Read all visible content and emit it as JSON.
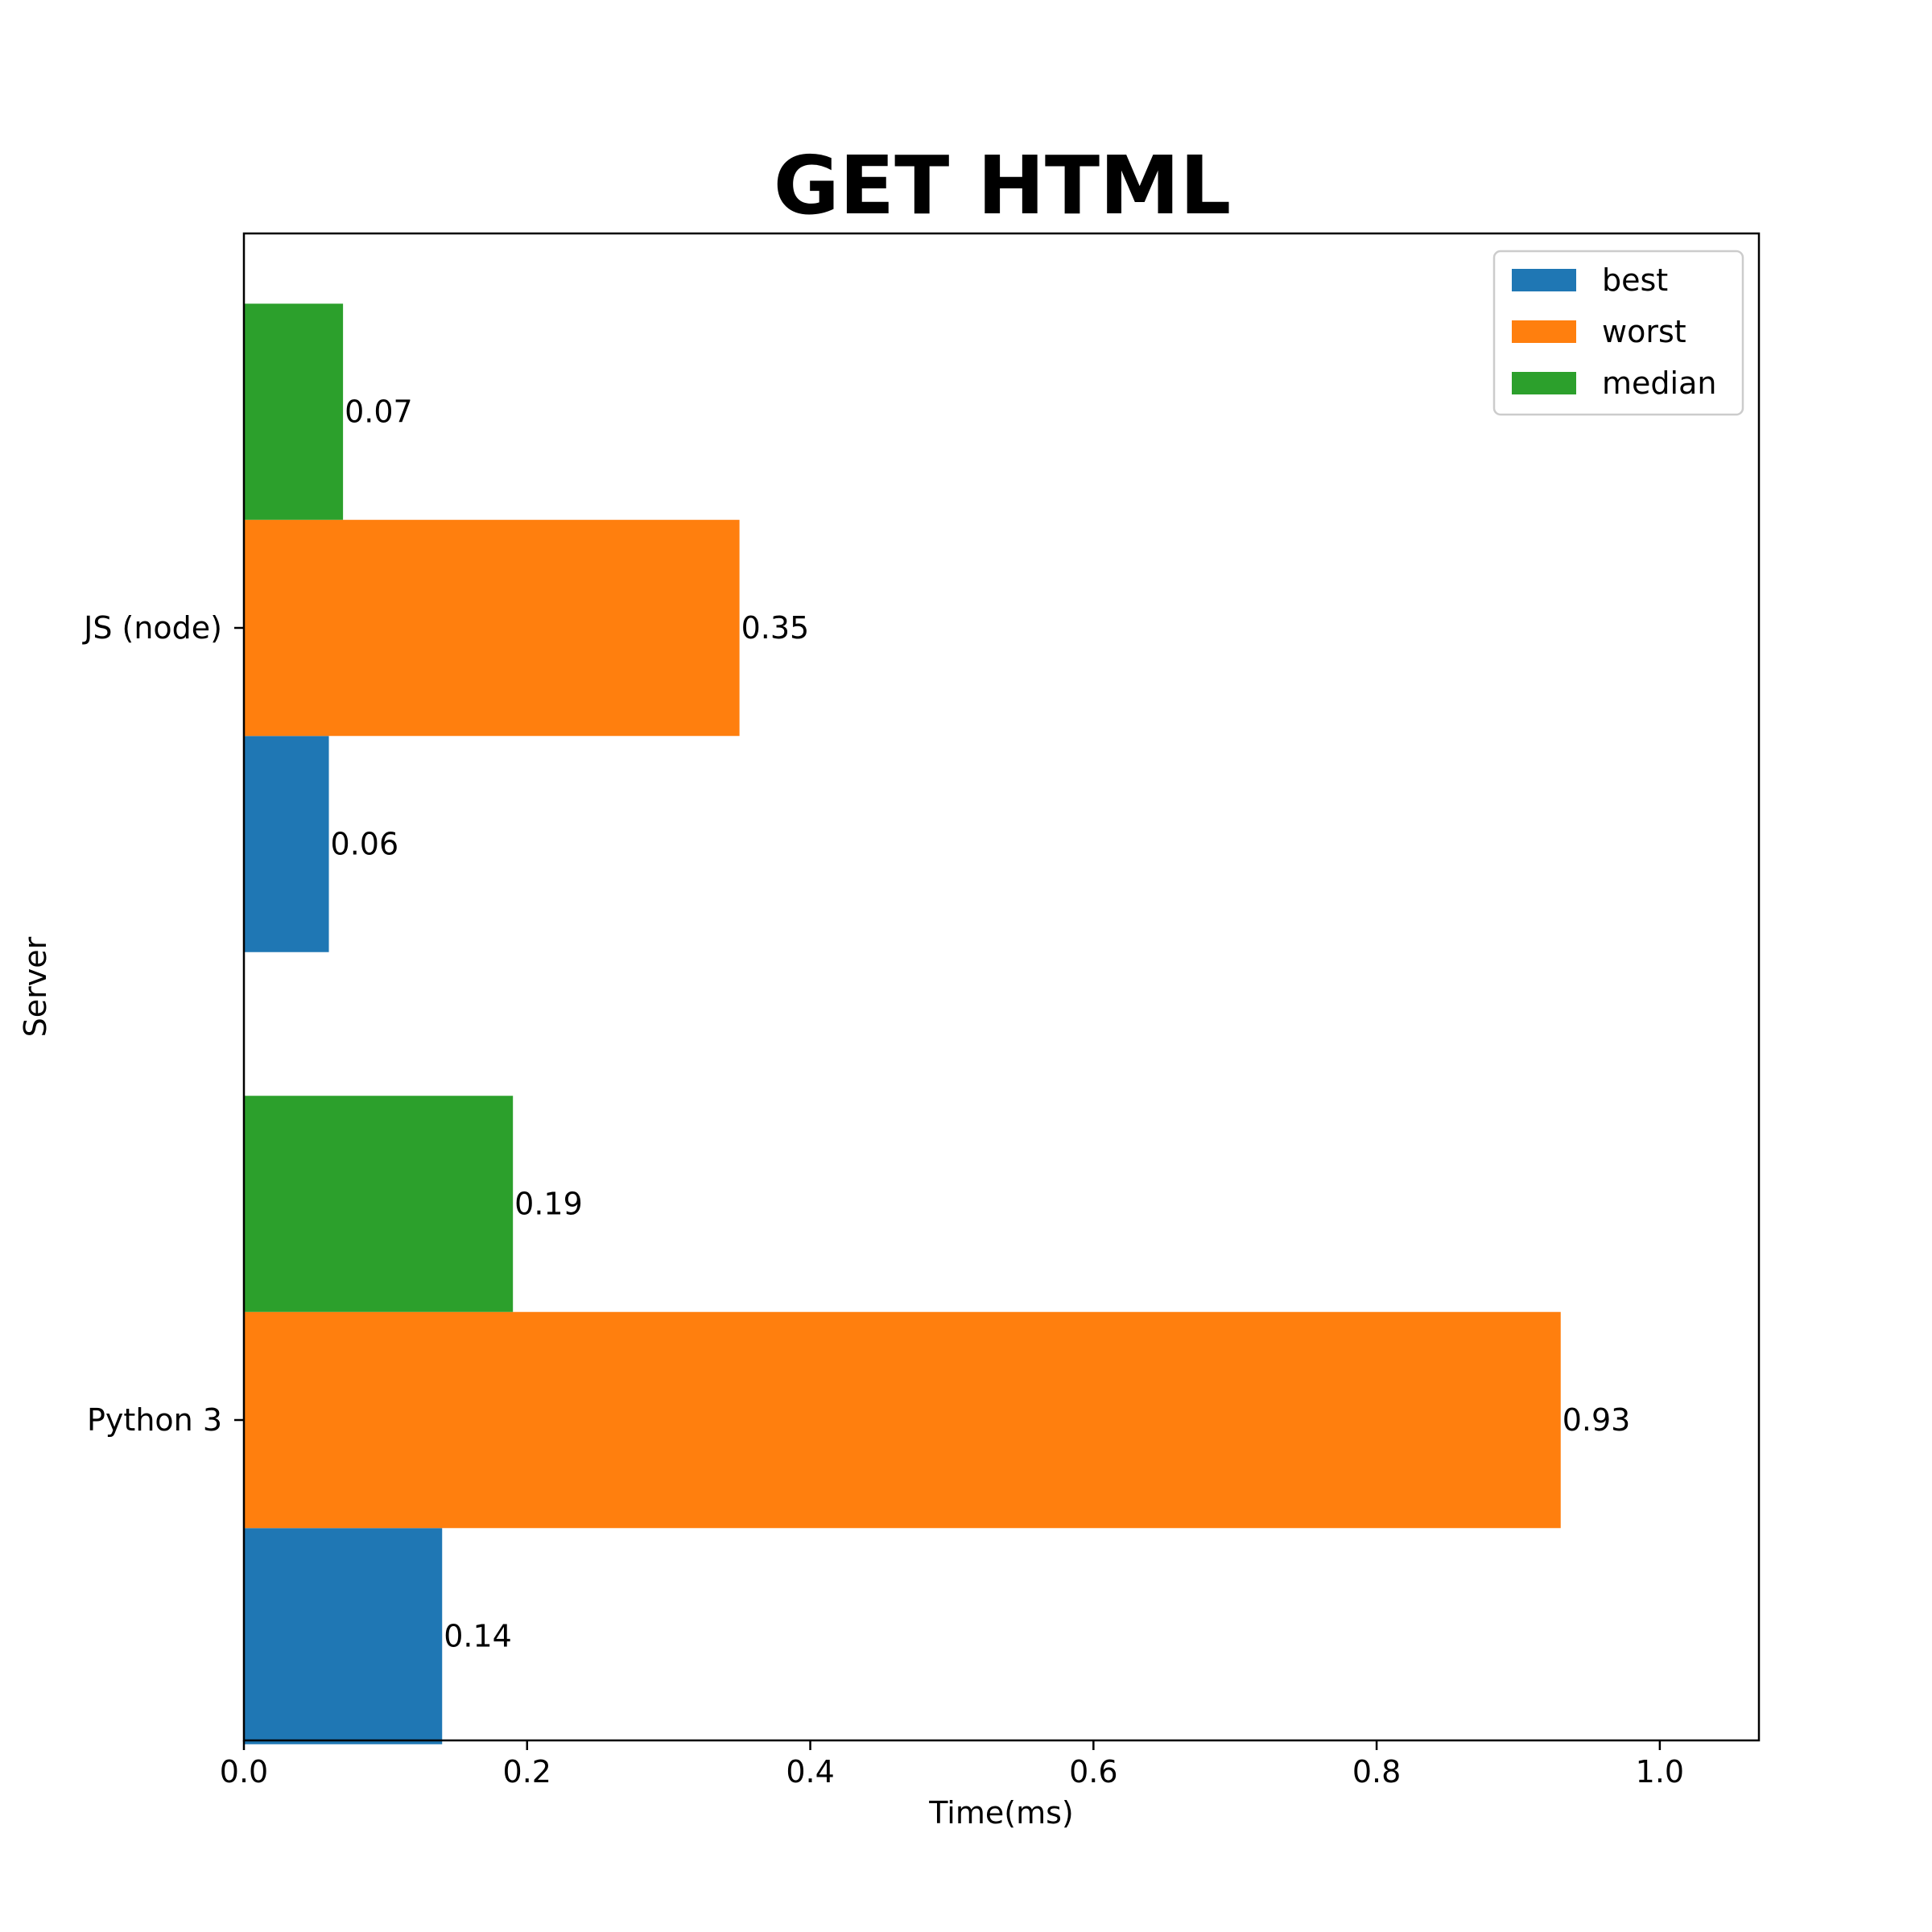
{
  "chart_data": {
    "type": "bar",
    "orientation": "horizontal",
    "title": "GET HTML",
    "xlabel": "Time(ms)",
    "ylabel": "Server",
    "categories": [
      "Python 3",
      "JS (node)"
    ],
    "series": [
      {
        "name": "best",
        "color": "#1f77b4",
        "values": [
          0.14,
          0.06
        ],
        "labels": [
          "0.14",
          "0.06"
        ]
      },
      {
        "name": "worst",
        "color": "#ff7f0e",
        "values": [
          0.93,
          0.35
        ],
        "labels": [
          "0.93",
          "0.35"
        ]
      },
      {
        "name": "median",
        "color": "#2ca02c",
        "values": [
          0.19,
          0.07
        ],
        "labels": [
          "0.19",
          "0.07"
        ]
      }
    ],
    "xlim": [
      0,
      1.07
    ],
    "xticks": [
      0.0,
      0.2,
      0.4,
      0.6,
      0.8,
      1.0
    ],
    "xtick_labels": [
      "0.0",
      "0.2",
      "0.4",
      "0.6",
      "0.8",
      "1.0"
    ],
    "grid": false,
    "legend_position": "top-right"
  }
}
